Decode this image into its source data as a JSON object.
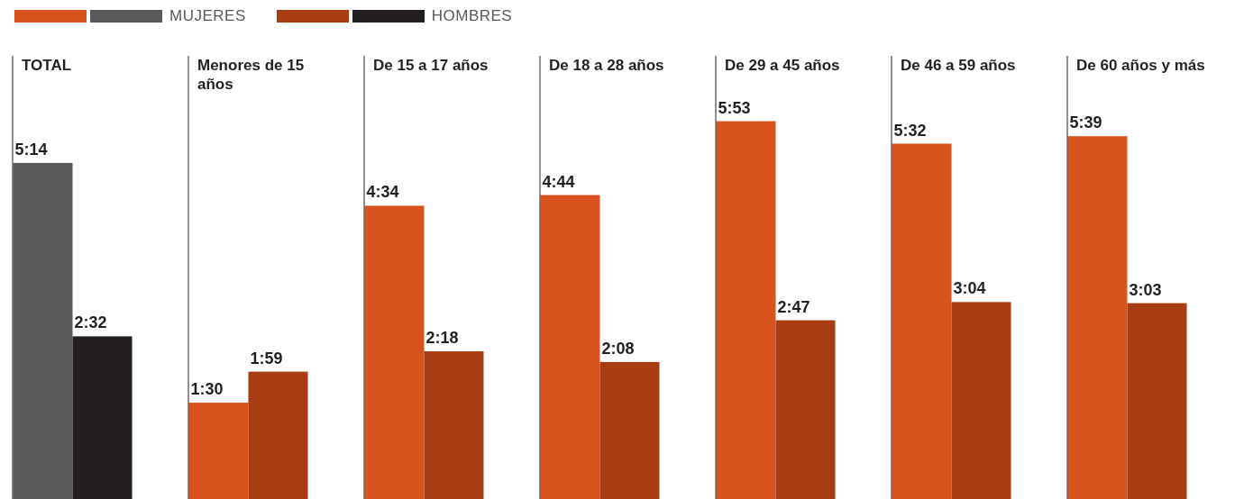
{
  "chart_data": {
    "type": "bar",
    "categories": [
      "TOTAL",
      "Menores de 15 años",
      "De 15 a 17 años",
      "De 18 a 28 años",
      "De 29 a 45 años",
      "De 46 a 59 años",
      "De 60 años y más"
    ],
    "series": [
      {
        "name": "MUJERES",
        "color": "#d9531e",
        "colors": [
          "#58595b",
          "#d9531e",
          "#d9531e",
          "#d9531e",
          "#d9531e",
          "#d9531e",
          "#d9531e"
        ],
        "values": [
          314,
          90,
          274,
          284,
          353,
          332,
          339
        ],
        "value_labels": [
          "5:14",
          "1:30",
          "4:34",
          "4:44",
          "5:53",
          "5:32",
          "5:39"
        ]
      },
      {
        "name": "HOMBRES",
        "color": "#a83c12",
        "colors": [
          "#231f20",
          "#a83c12",
          "#a83c12",
          "#a83c12",
          "#a83c12",
          "#a83c12",
          "#a83c12"
        ],
        "values": [
          152,
          119,
          138,
          128,
          167,
          184,
          183
        ],
        "value_labels": [
          "2:32",
          "1:59",
          "2:18",
          "2:08",
          "2:47",
          "3:04",
          "3:03"
        ]
      }
    ],
    "legend": "top left",
    "grid": false
  }
}
